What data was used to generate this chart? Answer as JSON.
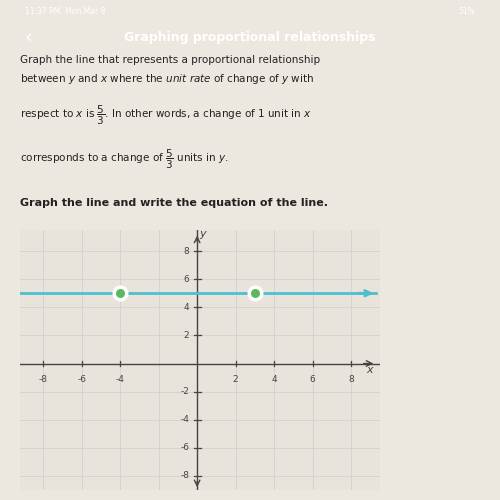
{
  "title": "Graphing proportional relationships",
  "bold_text": "Graph the line and write the equation of the line.",
  "slope": 0,
  "line_y": 5,
  "x_range": [
    -9,
    9
  ],
  "y_range": [
    -8.5,
    9
  ],
  "x_ticks": [
    -8,
    -6,
    -4,
    2,
    4,
    6,
    8
  ],
  "y_ticks": [
    -8,
    -6,
    -4,
    -2,
    2,
    4,
    6,
    8
  ],
  "dot1_x": -4,
  "dot1_y": 5,
  "dot2_x": 3,
  "dot2_y": 5,
  "line_color": "#4dbfcf",
  "dot_color": "#5cb85c",
  "dot_edge_color": "#ffffff",
  "background_color": "#ece8e0",
  "header_bg_color": "#2d4f6e",
  "header_text_color": "#ffffff",
  "grid_color": "#cccccc",
  "axis_color": "#444444",
  "text_color": "#222222",
  "status_bar_color": "#1a1a2e",
  "graph_bg_color": "#e8e4dc"
}
